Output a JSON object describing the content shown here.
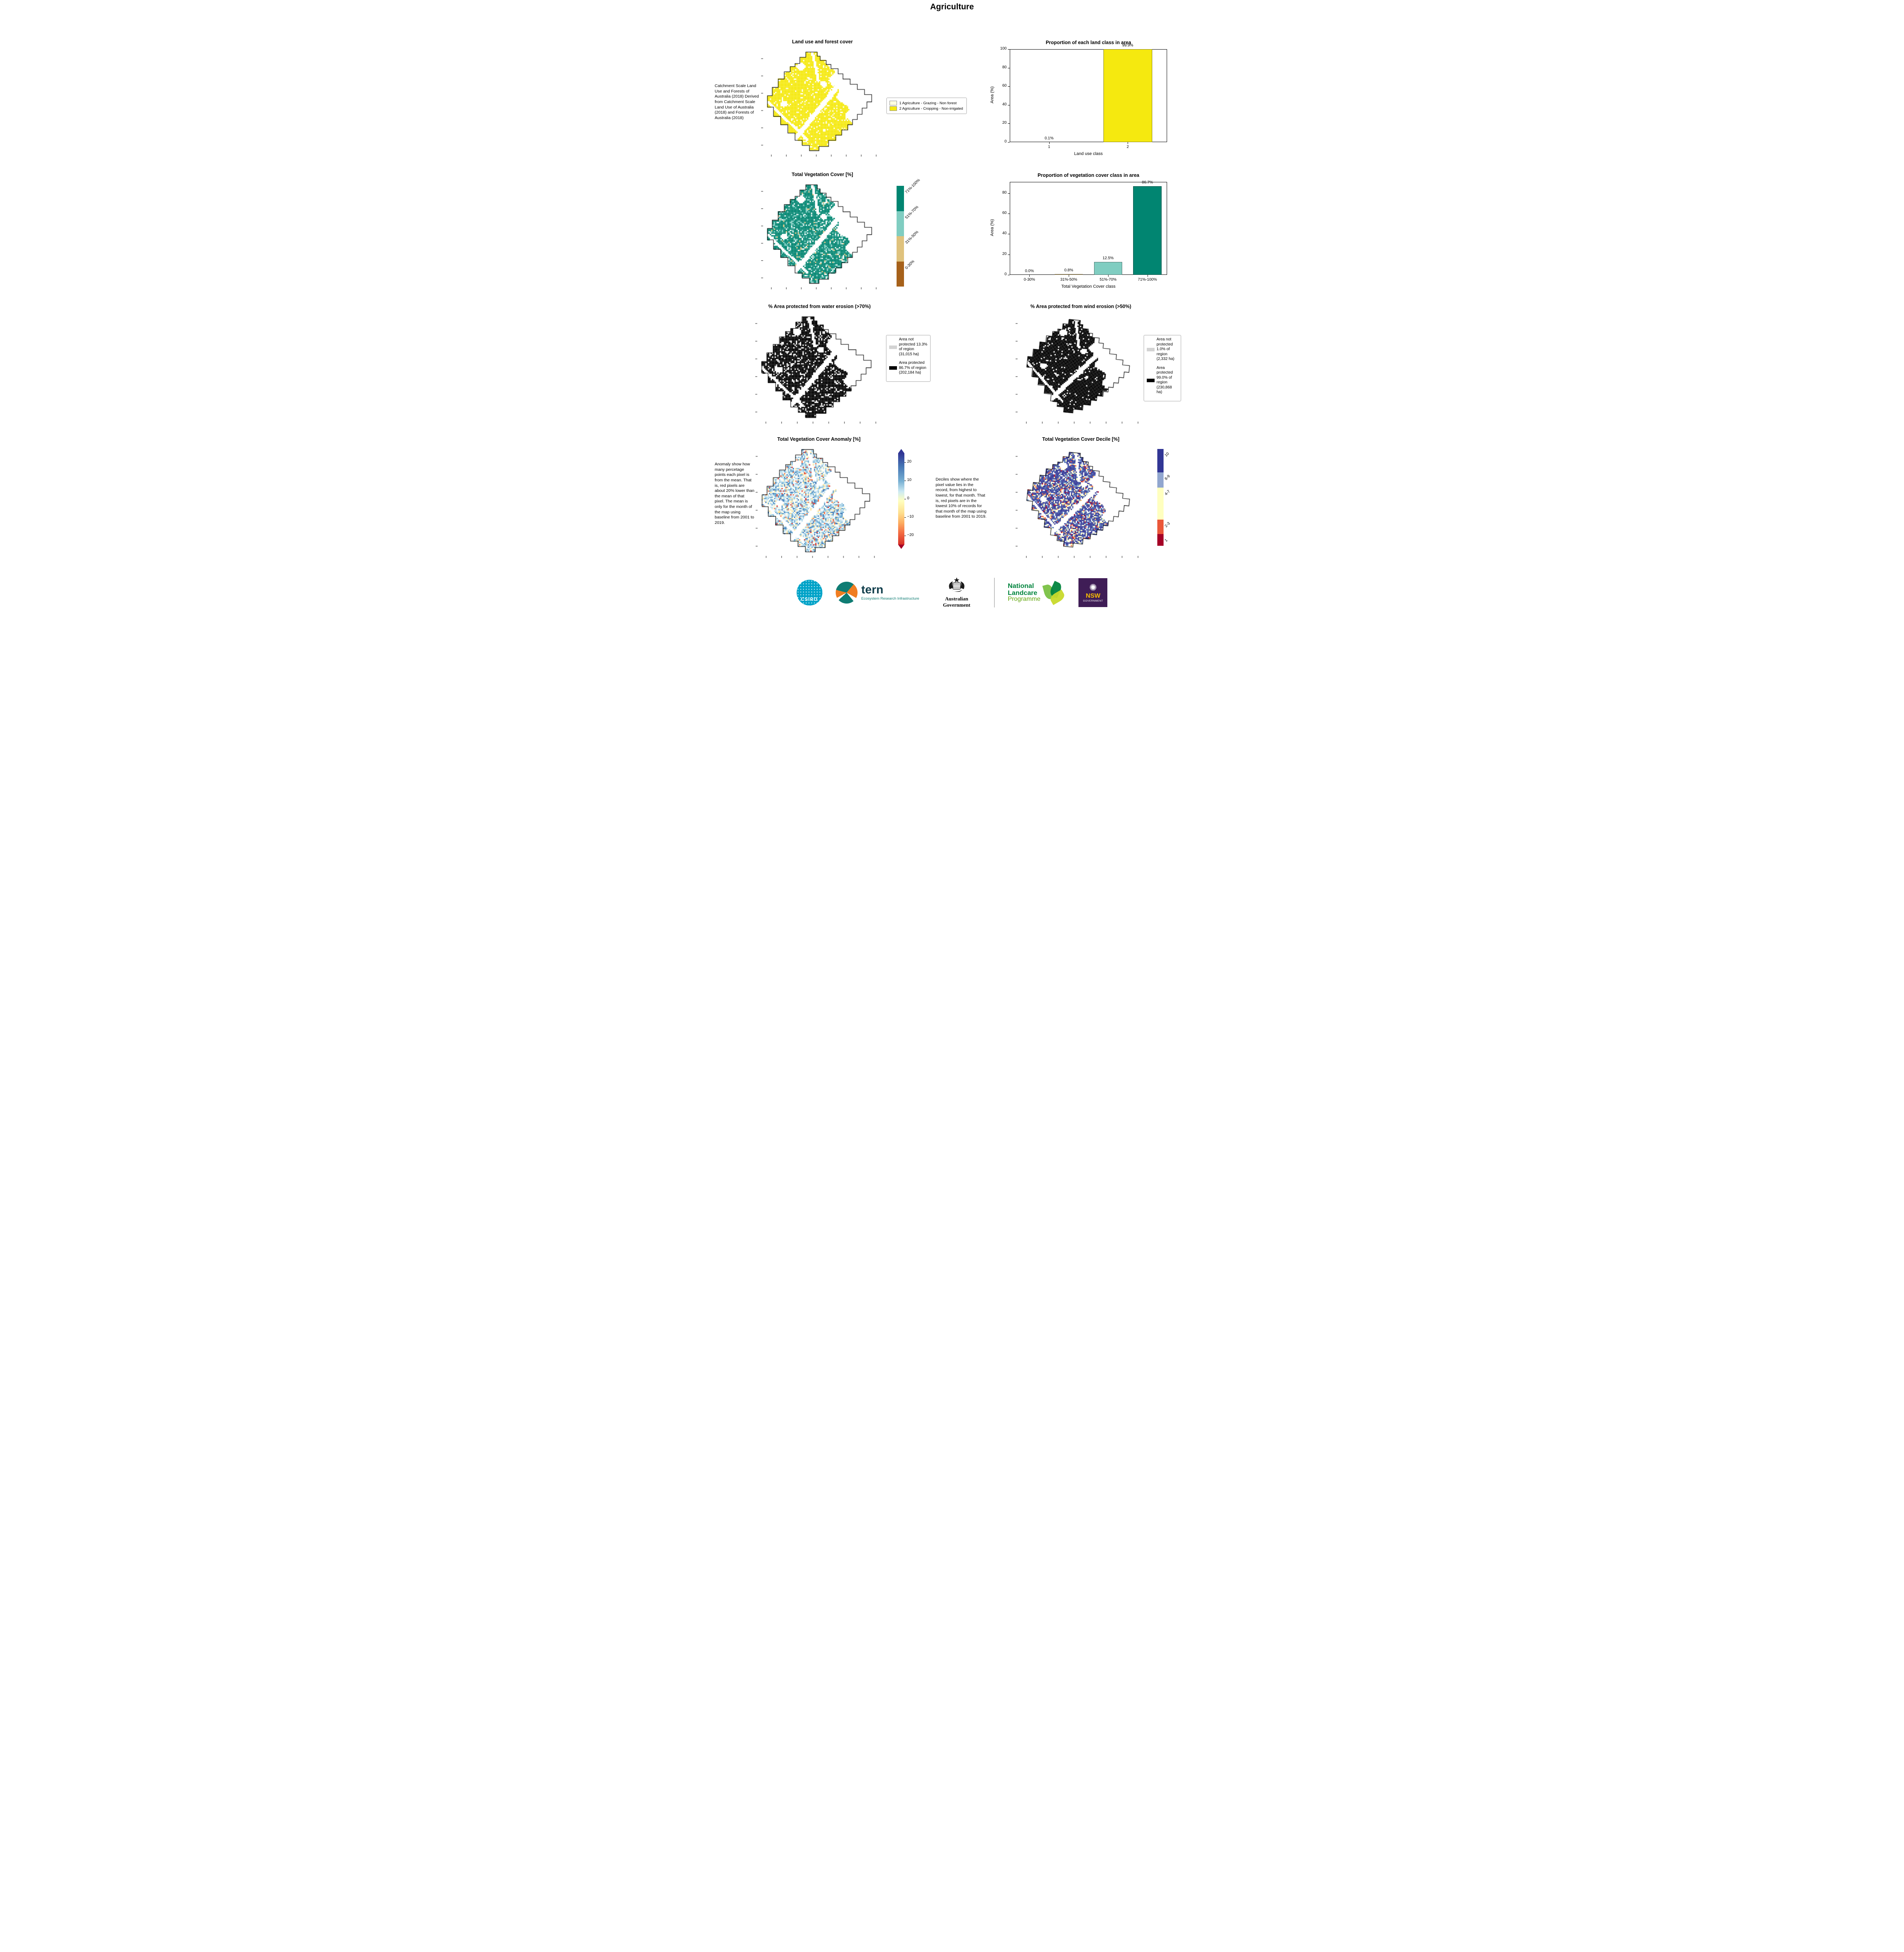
{
  "page_title": "Agriculture",
  "panels": {
    "land_use": {
      "title": "Land use and forest cover",
      "caption": "Catchment Scale Land Use and Forests of Australia (2018) Derived from Catchment Scale Land Use of Australia (2018) and Forests of Australia (2018)",
      "legend": [
        {
          "label": "1 Agriculture - Grazing - Non forest",
          "color": "#ffffe0"
        },
        {
          "label": "2 Agriculture - Cropping - Non-irrigated",
          "color": "#f5e90f"
        }
      ]
    },
    "veg_cover": {
      "title": "Total Vegetation Cover [%]",
      "colorbar": [
        {
          "label": "71%-100%",
          "color": "#018571",
          "h": 25
        },
        {
          "label": "51%-70%",
          "color": "#80cdc1",
          "h": 25
        },
        {
          "label": "31%-50%",
          "color": "#dfc27d",
          "h": 25
        },
        {
          "label": "0-30%",
          "color": "#a6611a",
          "h": 25
        }
      ]
    },
    "water_erosion": {
      "title": "% Area protected from water erosion (>70%)",
      "legend": [
        {
          "label": "Area not protected 13.3% of region (31,015 ha)",
          "color": "#d3d3d3"
        },
        {
          "label": "Area protected 86.7% of region (202,184 ha)",
          "color": "#000000"
        }
      ]
    },
    "wind_erosion": {
      "title": "% Area protected from wind erosion (>50%)",
      "legend": [
        {
          "label": "Area not protected 1.0% of region (2,332 ha)",
          "color": "#d3d3d3"
        },
        {
          "label": "Area protected 99.0% of region (230,868 ha)",
          "color": "#000000"
        }
      ]
    },
    "anomaly": {
      "title": "Total Vegetation Cover Anomaly [%]",
      "caption": "Anomaly show how many percetage points each pixel is from the mean. That is, red pixels are about 20% lower than the mean of that pixel. The mean is only for the month of the map using baseline from 2001 to 2019.",
      "colorbar_ticks": [
        "20",
        "10",
        "0",
        "−10",
        "−20"
      ]
    },
    "decile": {
      "title": "Total Vegetation Cover Decile [%]",
      "caption": "Deciles show where the pixel value lies in the record, from highest to lowest, for that month. That is, red pixels are in the lowest 10% of records for that month of the map using baseline from 2001 to 2019.",
      "colorbar": [
        {
          "label": "10",
          "color": "#313695",
          "h": 24
        },
        {
          "label": "8-9",
          "color": "#91a6cf",
          "h": 16
        },
        {
          "label": "4-7",
          "color": "#ffffbf",
          "h": 33
        },
        {
          "label": "2-3",
          "color": "#ea5739",
          "h": 15
        },
        {
          "label": "1",
          "color": "#a50026",
          "h": 12
        }
      ]
    }
  },
  "chart_data": [
    {
      "type": "bar",
      "title": "Proportion of each land class in area",
      "xlabel": "Land use class",
      "ylabel": "Area (%)",
      "categories": [
        "1",
        "2"
      ],
      "values": [
        0.1,
        99.9
      ],
      "value_labels": [
        "0.1%",
        "99.9%"
      ],
      "colors": [
        "#ffffe0",
        "#f5e90f"
      ],
      "ylim": [
        0,
        100
      ],
      "yticks": [
        0,
        20,
        40,
        60,
        80,
        100
      ],
      "grid": false,
      "legend_position": "none"
    },
    {
      "type": "bar",
      "title": "Proportion of vegetation cover class in area",
      "xlabel": "Total Vegetation Cover class",
      "ylabel": "Area (%)",
      "categories": [
        "0-30%",
        "31%-50%",
        "51%-70%",
        "71%-100%"
      ],
      "values": [
        0.0,
        0.8,
        12.5,
        86.7
      ],
      "value_labels": [
        "0.0%",
        "0.8%",
        "12.5%",
        "86.7%"
      ],
      "colors": [
        "#a6611a",
        "#dfc27d",
        "#80cdc1",
        "#018571"
      ],
      "ylim": [
        0,
        91
      ],
      "yticks": [
        0,
        20,
        40,
        60,
        80
      ],
      "grid": false,
      "legend_position": "none"
    }
  ],
  "footer": {
    "csiro_label": "CSIRO",
    "tern_label": "tern",
    "tern_sub": "Ecosystem Research Infrastructure",
    "ausgov_label": "Australian Government",
    "landcare_line1": "National",
    "landcare_line2": "Landcare",
    "landcare_line3": "Programme",
    "nsw_label": "NSW",
    "nsw_sub": "GOVERNMENT"
  }
}
